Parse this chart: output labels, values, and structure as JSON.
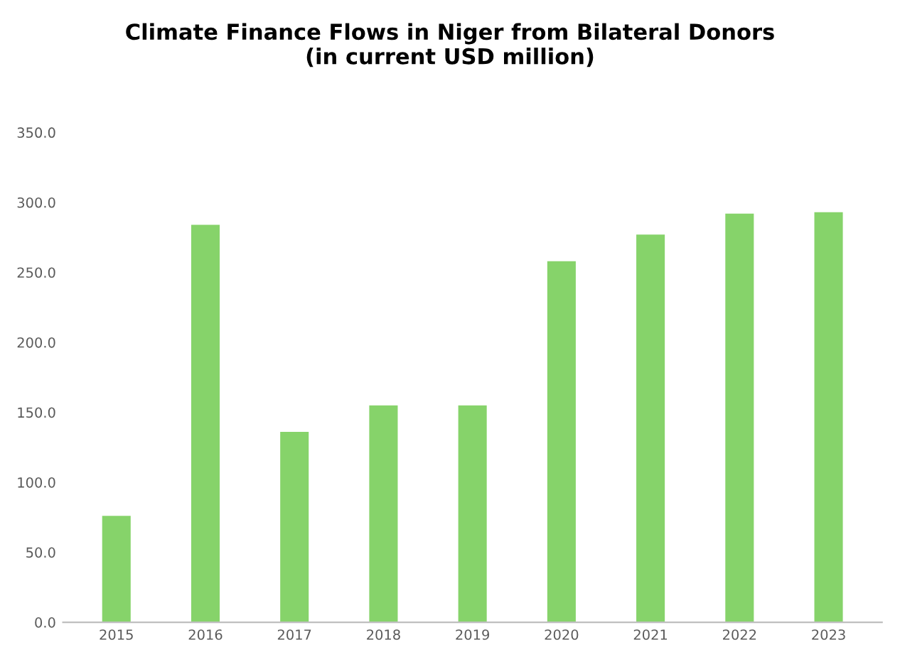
{
  "chart_data": {
    "type": "bar",
    "title": "Climate Finance Flows in Niger from Bilateral Donors\n(in current USD million)",
    "categories": [
      "2015",
      "2016",
      "2017",
      "2018",
      "2019",
      "2020",
      "2021",
      "2022",
      "2023"
    ],
    "values": [
      76,
      284,
      136,
      155,
      155,
      258,
      277,
      292,
      293
    ],
    "color": "#86d36a",
    "ylim": [
      0,
      350
    ],
    "yticks": [
      {
        "value": 0,
        "label": "0.0"
      },
      {
        "value": 50,
        "label": "50.0"
      },
      {
        "value": 100,
        "label": "100.0"
      },
      {
        "value": 150,
        "label": "150.0"
      },
      {
        "value": 200,
        "label": "200.0"
      },
      {
        "value": 250,
        "label": "250.0"
      },
      {
        "value": 300,
        "label": "300.0"
      },
      {
        "value": 350,
        "label": "350.0"
      }
    ]
  }
}
